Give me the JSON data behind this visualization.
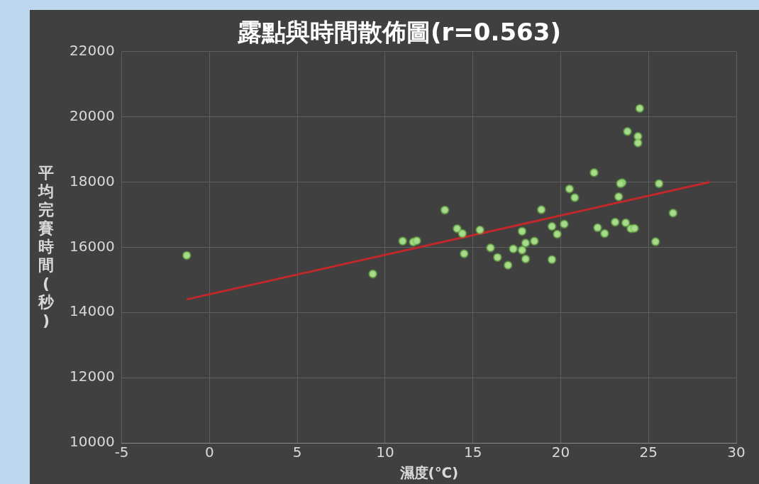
{
  "chart_data": {
    "type": "scatter",
    "title": "露點與時間散佈圖(r=0.563)",
    "xlabel": "濕度(℃)",
    "ylabel": "平均完賽時間(秒)",
    "xlim": [
      -5,
      30
    ],
    "xticks": [
      -5,
      0,
      5,
      10,
      15,
      20,
      25,
      30
    ],
    "ylim": [
      10000,
      22000
    ],
    "yticks": [
      10000,
      12000,
      14000,
      16000,
      18000,
      20000,
      22000
    ],
    "grid": true,
    "legend": false,
    "marker": "circle",
    "series": [
      {
        "color": "#a8dc8c",
        "x": [
          -1.3,
          9.3,
          11.0,
          11.6,
          11.8,
          13.4,
          14.1,
          14.4,
          14.5,
          15.4,
          16.0,
          16.4,
          17.0,
          17.3,
          17.8,
          17.8,
          18.0,
          18.0,
          18.5,
          18.9,
          19.5,
          19.8,
          19.5,
          20.2,
          20.5,
          20.8,
          21.9,
          22.1,
          22.5,
          23.1,
          23.3,
          23.5,
          23.4,
          23.7,
          23.8,
          24.0,
          24.2,
          24.4,
          24.4,
          24.5,
          25.6,
          25.4,
          26.4
        ],
        "values": [
          15750,
          15180,
          16190,
          16160,
          16200,
          17140,
          16570,
          16420,
          15800,
          16530,
          15980,
          15690,
          15450,
          15950,
          16490,
          15910,
          16130,
          15640,
          16190,
          17150,
          16640,
          16400,
          15620,
          16710,
          17790,
          17520,
          18290,
          16600,
          16420,
          16770,
          17550,
          17980,
          17950,
          16750,
          19550,
          16570,
          16580,
          19400,
          19200,
          20260,
          17950,
          16170,
          17050
        ]
      },
      {
        "type": "line",
        "color": "#c0282b",
        "marker": "none",
        "x": [
          -1.3,
          28.5
        ],
        "values": [
          14400,
          18000
        ]
      }
    ]
  }
}
